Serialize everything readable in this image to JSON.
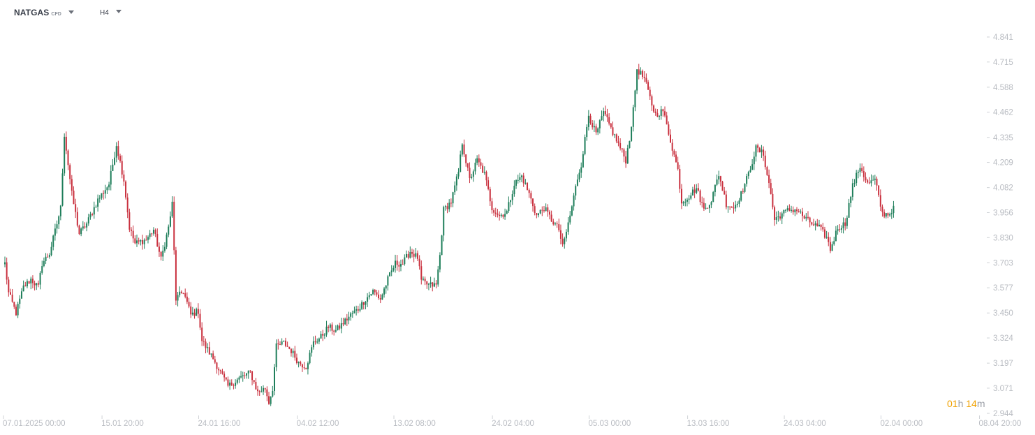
{
  "toolbar": {
    "symbol": "NATGAS",
    "symbol_type": "CFD",
    "timeframe": "H4",
    "caret_icon": "chevron-down-icon"
  },
  "countdown": {
    "hours": "01",
    "hours_unit": "h",
    "minutes": "14",
    "minutes_unit": "m"
  },
  "colors": {
    "up": "#1e7e5a",
    "down": "#c9303e",
    "axis_text": "#b9bcc2",
    "countdown": "#f0a100"
  },
  "chart_data": {
    "type": "candlestick",
    "title": "",
    "ylim": [
      2.944,
      4.9
    ],
    "y_ticks": [
      4.841,
      4.715,
      4.588,
      4.462,
      4.335,
      4.209,
      4.082,
      3.956,
      3.83,
      3.703,
      3.577,
      3.45,
      3.324,
      3.197,
      3.071,
      2.944
    ],
    "x_tick_labels": [
      "07.01.2025  00:00",
      "15.01  20:00",
      "24.01  16:00",
      "04.02  12:00",
      "13.02  08:00",
      "24.02  04:00",
      "05.03  00:00",
      "13.03  16:00",
      "24.03  04:00",
      "02.04  00:00",
      "08.04  20:00"
    ],
    "x_tick_bar_index": [
      0,
      53,
      105,
      158,
      210,
      263,
      315,
      368,
      420,
      472,
      525
    ],
    "grid": false,
    "anchors": [
      [
        0,
        3.7
      ],
      [
        2,
        3.55
      ],
      [
        6,
        3.45
      ],
      [
        10,
        3.58
      ],
      [
        14,
        3.62
      ],
      [
        18,
        3.58
      ],
      [
        20,
        3.7
      ],
      [
        24,
        3.75
      ],
      [
        28,
        3.9
      ],
      [
        30,
        3.98
      ],
      [
        32,
        4.35
      ],
      [
        36,
        4.05
      ],
      [
        40,
        3.85
      ],
      [
        44,
        3.9
      ],
      [
        50,
        4.02
      ],
      [
        56,
        4.1
      ],
      [
        60,
        4.3
      ],
      [
        64,
        4.12
      ],
      [
        67,
        3.88
      ],
      [
        70,
        3.8
      ],
      [
        76,
        3.82
      ],
      [
        80,
        3.87
      ],
      [
        84,
        3.72
      ],
      [
        88,
        3.88
      ],
      [
        90,
        4.0
      ],
      [
        92,
        3.52
      ],
      [
        96,
        3.56
      ],
      [
        100,
        3.44
      ],
      [
        104,
        3.46
      ],
      [
        106,
        3.31
      ],
      [
        112,
        3.22
      ],
      [
        116,
        3.15
      ],
      [
        120,
        3.08
      ],
      [
        126,
        3.12
      ],
      [
        132,
        3.15
      ],
      [
        136,
        3.05
      ],
      [
        140,
        3.07
      ],
      [
        142,
        3.0
      ],
      [
        144,
        3.07
      ],
      [
        146,
        3.28
      ],
      [
        150,
        3.3
      ],
      [
        154,
        3.26
      ],
      [
        158,
        3.2
      ],
      [
        162,
        3.18
      ],
      [
        166,
        3.3
      ],
      [
        170,
        3.33
      ],
      [
        174,
        3.38
      ],
      [
        178,
        3.36
      ],
      [
        182,
        3.4
      ],
      [
        186,
        3.44
      ],
      [
        190,
        3.47
      ],
      [
        194,
        3.52
      ],
      [
        198,
        3.56
      ],
      [
        202,
        3.52
      ],
      [
        206,
        3.62
      ],
      [
        210,
        3.7
      ],
      [
        214,
        3.7
      ],
      [
        218,
        3.76
      ],
      [
        222,
        3.73
      ],
      [
        224,
        3.61
      ],
      [
        228,
        3.59
      ],
      [
        232,
        3.59
      ],
      [
        234,
        3.74
      ],
      [
        236,
        3.97
      ],
      [
        240,
        4.01
      ],
      [
        244,
        4.16
      ],
      [
        246,
        4.31
      ],
      [
        250,
        4.12
      ],
      [
        254,
        4.22
      ],
      [
        258,
        4.15
      ],
      [
        262,
        3.98
      ],
      [
        266,
        3.94
      ],
      [
        270,
        3.96
      ],
      [
        274,
        4.1
      ],
      [
        278,
        4.14
      ],
      [
        282,
        4.05
      ],
      [
        286,
        3.94
      ],
      [
        290,
        3.98
      ],
      [
        294,
        3.92
      ],
      [
        298,
        3.87
      ],
      [
        300,
        3.78
      ],
      [
        304,
        3.94
      ],
      [
        308,
        4.13
      ],
      [
        310,
        4.2
      ],
      [
        314,
        4.45
      ],
      [
        318,
        4.35
      ],
      [
        322,
        4.46
      ],
      [
        326,
        4.38
      ],
      [
        330,
        4.3
      ],
      [
        334,
        4.22
      ],
      [
        336,
        4.33
      ],
      [
        338,
        4.47
      ],
      [
        340,
        4.68
      ],
      [
        344,
        4.63
      ],
      [
        348,
        4.5
      ],
      [
        350,
        4.45
      ],
      [
        354,
        4.47
      ],
      [
        358,
        4.32
      ],
      [
        362,
        4.17
      ],
      [
        364,
        4.01
      ],
      [
        368,
        4.04
      ],
      [
        372,
        4.08
      ],
      [
        376,
        3.97
      ],
      [
        380,
        4.02
      ],
      [
        384,
        4.15
      ],
      [
        388,
        4.0
      ],
      [
        392,
        3.98
      ],
      [
        396,
        4.05
      ],
      [
        400,
        4.15
      ],
      [
        404,
        4.28
      ],
      [
        408,
        4.25
      ],
      [
        412,
        4.05
      ],
      [
        414,
        3.92
      ],
      [
        418,
        3.95
      ],
      [
        422,
        3.97
      ],
      [
        426,
        3.97
      ],
      [
        430,
        3.93
      ],
      [
        434,
        3.9
      ],
      [
        438,
        3.88
      ],
      [
        442,
        3.83
      ],
      [
        444,
        3.77
      ],
      [
        448,
        3.88
      ],
      [
        452,
        3.9
      ],
      [
        456,
        4.09
      ],
      [
        460,
        4.19
      ],
      [
        464,
        4.1
      ],
      [
        468,
        4.12
      ],
      [
        472,
        3.95
      ],
      [
        476,
        3.95
      ],
      [
        478,
        3.99
      ]
    ]
  }
}
